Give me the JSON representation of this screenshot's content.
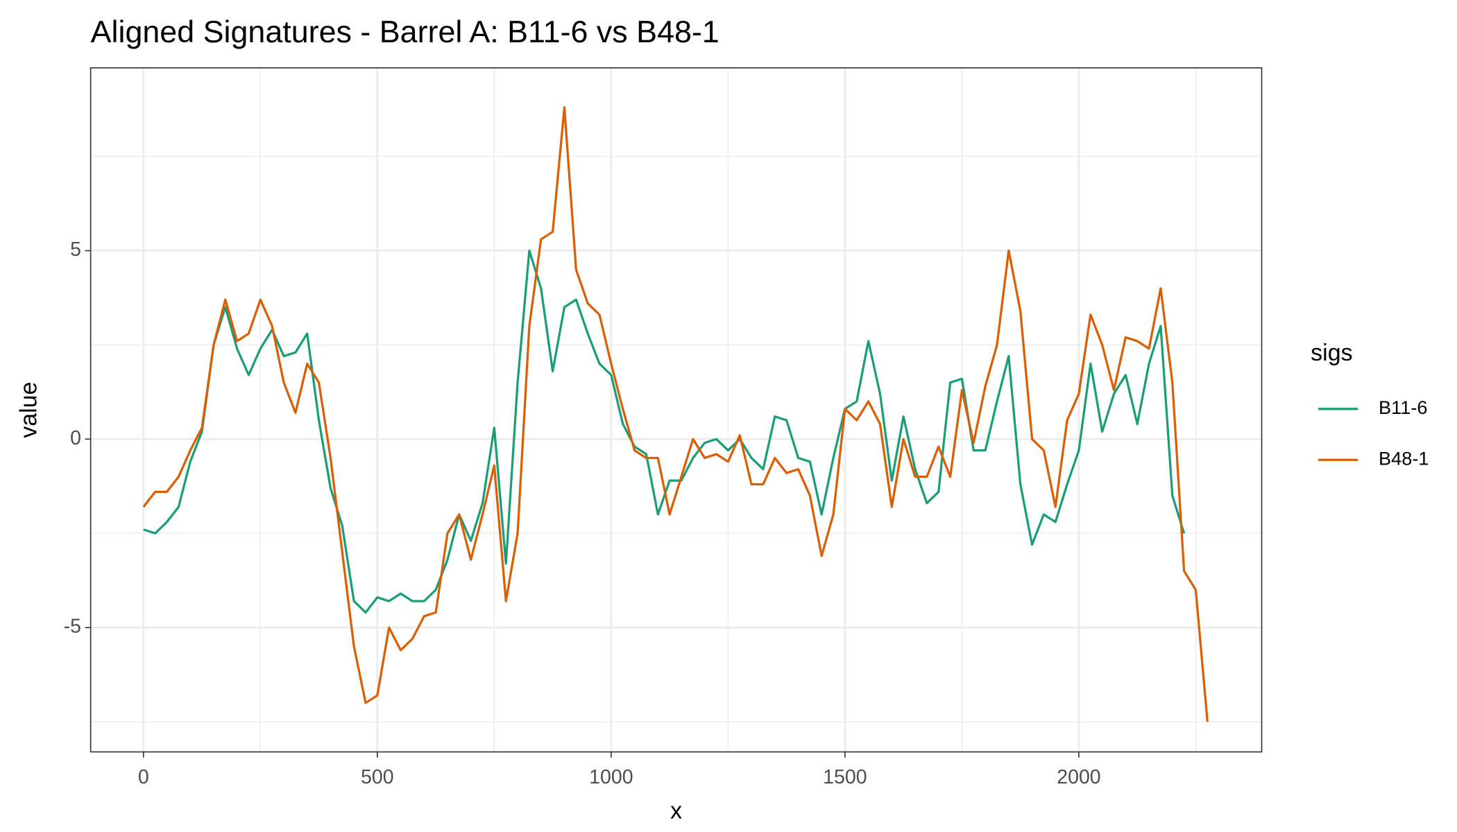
{
  "chart_data": {
    "type": "line",
    "title": "Aligned Signatures - Barrel A: B11-6 vs B48-1",
    "x_label": "x",
    "y_label": "value",
    "legend_title": "sigs",
    "xlim": [
      -113,
      2391
    ],
    "ylim": [
      -8.3,
      9.85
    ],
    "xticks": [
      0,
      500,
      1000,
      1500,
      2000
    ],
    "yticks": [
      -5,
      0,
      5
    ],
    "xminorticks": [
      250,
      750,
      1250,
      1750,
      2250
    ],
    "yminorticks": [
      -7.5,
      -2.5,
      2.5,
      7.5
    ],
    "grid": true,
    "legend_position": "right",
    "x": [
      0,
      25,
      50,
      75,
      100,
      125,
      150,
      175,
      200,
      225,
      250,
      275,
      300,
      325,
      350,
      375,
      400,
      425,
      450,
      475,
      500,
      525,
      550,
      575,
      600,
      625,
      650,
      675,
      700,
      725,
      750,
      775,
      800,
      825,
      850,
      875,
      900,
      925,
      950,
      975,
      1000,
      1025,
      1050,
      1075,
      1100,
      1125,
      1150,
      1175,
      1200,
      1225,
      1250,
      1275,
      1300,
      1325,
      1350,
      1375,
      1400,
      1425,
      1450,
      1475,
      1500,
      1525,
      1550,
      1575,
      1600,
      1625,
      1650,
      1675,
      1700,
      1725,
      1750,
      1775,
      1800,
      1825,
      1850,
      1875,
      1900,
      1925,
      1950,
      1975,
      2000,
      2025,
      2050,
      2075,
      2100,
      2125,
      2150,
      2175,
      2200,
      2225,
      2250,
      2275
    ],
    "series": [
      {
        "name": "B11-6",
        "color": "#1B9E77",
        "values": [
          -2.4,
          -2.5,
          -2.2,
          -1.8,
          -0.6,
          0.2,
          2.5,
          3.5,
          2.4,
          1.7,
          2.4,
          2.9,
          2.2,
          2.3,
          2.8,
          0.5,
          -1.3,
          -2.3,
          -4.3,
          -4.6,
          -4.2,
          -4.3,
          -4.1,
          -4.3,
          -4.3,
          -4.0,
          -3.2,
          -2.0,
          -2.7,
          -1.7,
          0.3,
          -3.3,
          1.5,
          5.0,
          4.0,
          1.8,
          3.5,
          3.7,
          2.8,
          2.0,
          1.7,
          0.4,
          -0.2,
          -0.4,
          -2.0,
          -1.1,
          -1.1,
          -0.5,
          -0.1,
          0.0,
          -0.3,
          0.0,
          -0.5,
          -0.8,
          0.6,
          0.5,
          -0.5,
          -0.6,
          -2.0,
          -0.5,
          0.8,
          1.0,
          2.6,
          1.2,
          -1.1,
          0.6,
          -0.8,
          -1.7,
          -1.4,
          1.5,
          1.6,
          -0.3,
          -0.3,
          1.0,
          2.2,
          -1.2,
          -2.8,
          -2.0,
          -2.2,
          -1.2,
          -0.3,
          2.0,
          0.2,
          1.2,
          1.7,
          0.4,
          2.0,
          3.0,
          -1.5,
          -2.5,
          null,
          null
        ]
      },
      {
        "name": "B48-1",
        "color": "#D95F02",
        "values": [
          -1.8,
          -1.4,
          -1.4,
          -1.0,
          -0.3,
          0.3,
          2.5,
          3.7,
          2.6,
          2.8,
          3.7,
          3.0,
          1.5,
          0.7,
          2.0,
          1.5,
          -0.5,
          -3.0,
          -5.5,
          -7.0,
          -6.8,
          -5.0,
          -5.6,
          -5.3,
          -4.7,
          -4.6,
          -2.5,
          -2.0,
          -3.2,
          -2.0,
          -0.7,
          -4.3,
          -2.5,
          3.0,
          5.3,
          5.5,
          8.8,
          4.5,
          3.6,
          3.3,
          2.0,
          0.8,
          -0.3,
          -0.5,
          -0.5,
          -2.0,
          -1.0,
          0.0,
          -0.5,
          -0.4,
          -0.6,
          0.1,
          -1.2,
          -1.2,
          -0.5,
          -0.9,
          -0.8,
          -1.5,
          -3.1,
          -2.0,
          0.8,
          0.5,
          1.0,
          0.4,
          -1.8,
          0.0,
          -1.0,
          -1.0,
          -0.2,
          -1.0,
          1.3,
          -0.1,
          1.4,
          2.5,
          5.0,
          3.4,
          0.0,
          -0.3,
          -1.8,
          0.5,
          1.2,
          3.3,
          2.5,
          1.3,
          2.7,
          2.6,
          2.4,
          4.0,
          1.5,
          -3.5,
          -4.0,
          -7.5
        ]
      }
    ]
  }
}
